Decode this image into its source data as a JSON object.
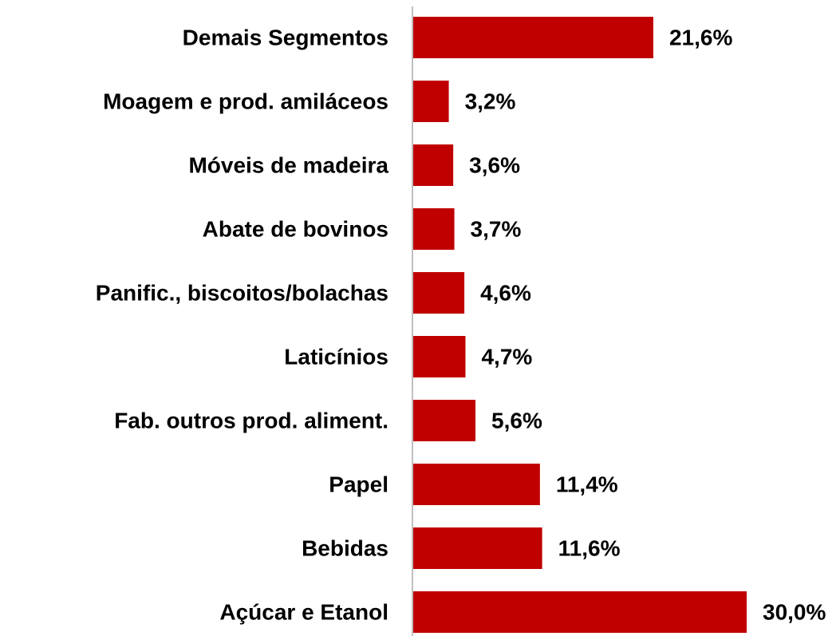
{
  "chart_data": {
    "type": "bar",
    "orientation": "horizontal",
    "categories": [
      "Demais Segmentos",
      "Moagem e prod. amiláceos",
      "Móveis de madeira",
      "Abate de bovinos",
      "Panific., biscoitos/bolachas",
      "Laticínios",
      "Fab. outros prod. aliment.",
      "Papel",
      "Bebidas",
      "Açúcar e Etanol"
    ],
    "values": [
      21.6,
      3.2,
      3.6,
      3.7,
      4.6,
      4.7,
      5.6,
      11.4,
      11.6,
      30.0
    ],
    "value_labels": [
      "21,6%",
      "3,2%",
      "3,6%",
      "3,7%",
      "4,6%",
      "4,7%",
      "5,6%",
      "11,4%",
      "11,6%",
      "30,0%"
    ],
    "color": "#c00000"
  }
}
